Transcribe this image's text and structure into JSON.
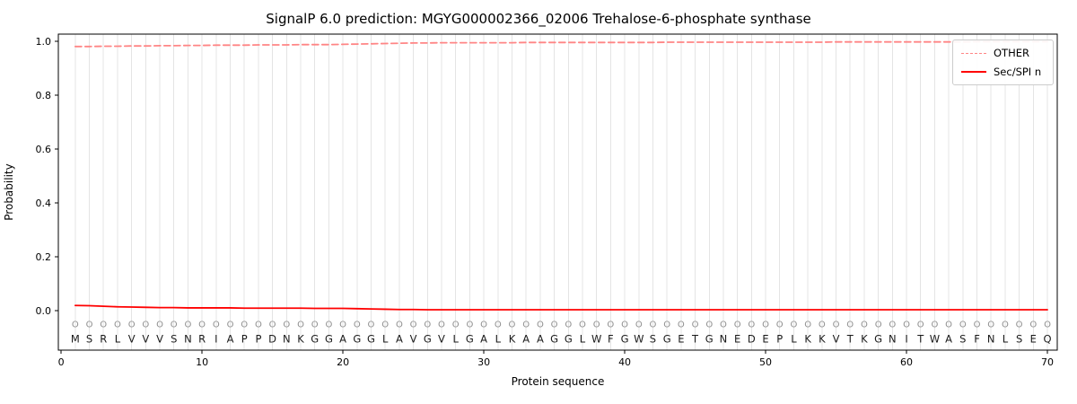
{
  "figure": {
    "title": "SignalP 6.0 prediction: MGYG000002366_02006 Trehalose-6-phosphate synthase"
  },
  "chart_data": {
    "type": "line",
    "title": "SignalP 6.0 prediction: MGYG000002366_02006 Trehalose-6-phosphate synthase",
    "xlabel": "Protein sequence",
    "ylabel": "Probability",
    "xlim": [
      -0.2,
      70.7
    ],
    "ylim": [
      -0.147,
      1.027
    ],
    "xticks": [
      0,
      10,
      20,
      30,
      40,
      50,
      60,
      70
    ],
    "yticks": [
      0.0,
      0.2,
      0.4,
      0.6,
      0.8,
      1.0
    ],
    "grid": "vertical-per-residue",
    "legend_position": "upper right",
    "sequence": "MSRLVVVSNRIAPPDNKGGAGGLAVGVLGALKAAGGLWFGWSGETGNEDEPLKKVTKGNITWASFNLSEQ",
    "marker_row_symbol": "O",
    "series": [
      {
        "name": "OTHER",
        "color": "#ff8585",
        "dash": true,
        "values": [
          0.981,
          0.981,
          0.982,
          0.982,
          0.983,
          0.983,
          0.984,
          0.984,
          0.985,
          0.985,
          0.986,
          0.986,
          0.986,
          0.987,
          0.987,
          0.987,
          0.988,
          0.988,
          0.988,
          0.989,
          0.99,
          0.991,
          0.992,
          0.993,
          0.994,
          0.994,
          0.995,
          0.995,
          0.995,
          0.995,
          0.995,
          0.995,
          0.996,
          0.996,
          0.996,
          0.996,
          0.996,
          0.996,
          0.996,
          0.996,
          0.996,
          0.996,
          0.997,
          0.997,
          0.997,
          0.997,
          0.997,
          0.997,
          0.997,
          0.997,
          0.997,
          0.997,
          0.997,
          0.997,
          0.998,
          0.998,
          0.998,
          0.998,
          0.998,
          0.998,
          0.998,
          0.998,
          0.998,
          0.998,
          0.999,
          0.999,
          0.999,
          0.999,
          0.999,
          0.999
        ]
      },
      {
        "name": "Sec/SPI n",
        "color": "#ff0000",
        "dash": false,
        "values": [
          0.019,
          0.018,
          0.016,
          0.014,
          0.013,
          0.012,
          0.011,
          0.011,
          0.01,
          0.01,
          0.01,
          0.01,
          0.009,
          0.009,
          0.009,
          0.009,
          0.009,
          0.008,
          0.008,
          0.008,
          0.007,
          0.006,
          0.005,
          0.004,
          0.004,
          0.003,
          0.003,
          0.003,
          0.003,
          0.003,
          0.003,
          0.003,
          0.003,
          0.003,
          0.003,
          0.003,
          0.003,
          0.003,
          0.003,
          0.003,
          0.003,
          0.003,
          0.003,
          0.003,
          0.003,
          0.003,
          0.003,
          0.003,
          0.003,
          0.003,
          0.003,
          0.003,
          0.003,
          0.003,
          0.003,
          0.003,
          0.003,
          0.003,
          0.003,
          0.003,
          0.003,
          0.003,
          0.003,
          0.003,
          0.003,
          0.003,
          0.003,
          0.003,
          0.003,
          0.003
        ]
      }
    ]
  }
}
